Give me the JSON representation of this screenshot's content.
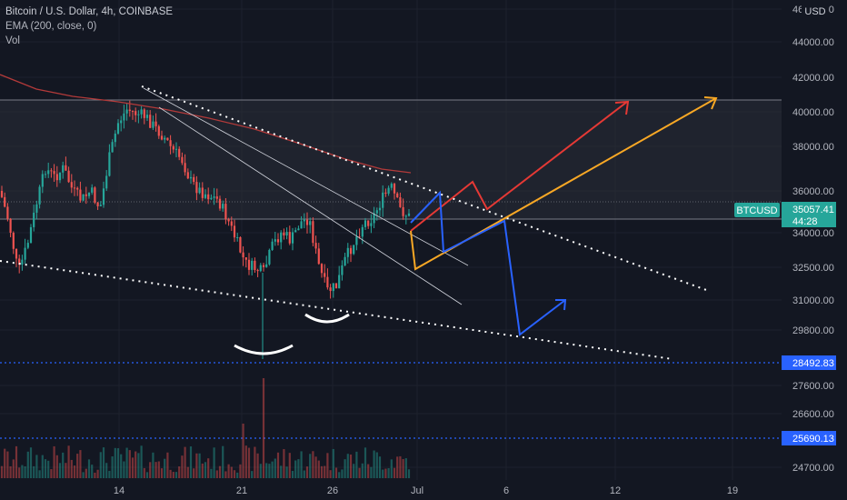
{
  "header": {
    "title": "Bitcoin / U.S. Dollar, 4h, COINBASE",
    "indicator_ema": "EMA (200, close, 0)",
    "indicator_vol": "Vol",
    "currency": "USD"
  },
  "chart_data": {
    "type": "candlestick",
    "symbol": "BTCUSD",
    "interval": "4h",
    "exchange": "COINBASE",
    "y_axis_ticks": [
      "46000.00",
      "44000.00",
      "42000.00",
      "40000.00",
      "38000.00",
      "36000.00",
      "34000.00",
      "32500.00",
      "31000.00",
      "29800.00",
      "27600.00",
      "26600.00",
      "24700.00"
    ],
    "x_axis_ticks": [
      "14",
      "21",
      "26",
      "Jul",
      "6",
      "12",
      "19"
    ],
    "price_tags": [
      {
        "label": "BTCUSD",
        "value": "35057.41",
        "countdown": "44:28",
        "color": "#26a69a"
      },
      {
        "label": "",
        "value": "28492.83",
        "color": "#2962ff"
      },
      {
        "label": "",
        "value": "25690.13",
        "color": "#2962ff"
      }
    ],
    "horizontal_lines": [
      {
        "price": 28492.83,
        "style": "dotted",
        "color": "#2962ff"
      },
      {
        "price": 25690.13,
        "style": "dotted",
        "color": "#2962ff"
      }
    ],
    "range_zone": {
      "top": 40700,
      "bottom": 34500
    },
    "ema_200": true,
    "volume": true,
    "scale_note": "non-linear (log-like) price scale"
  },
  "colors": {
    "background": "#131722",
    "up": "#26a69a",
    "down": "#ef5350",
    "ema": "#c0392b",
    "arrow_red": "#e53935",
    "arrow_orange": "#f9a825",
    "arrow_blue": "#2962ff"
  }
}
